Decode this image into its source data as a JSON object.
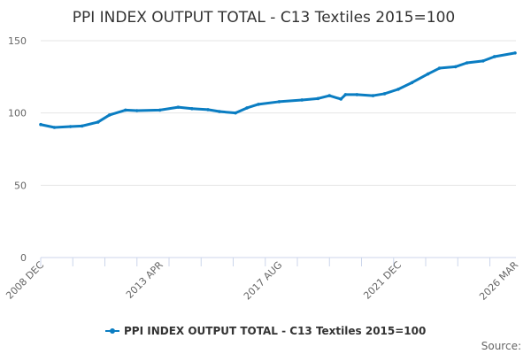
{
  "chart_data": {
    "type": "line",
    "title": "PPI INDEX OUTPUT TOTAL - C13 Textiles 2015=100",
    "xlabel": "",
    "ylabel": "",
    "ylim": [
      0,
      150
    ],
    "yticks": [
      0,
      50,
      100,
      150
    ],
    "xticks": [
      "2008 DEC",
      "2013 APR",
      "2017 AUG",
      "2021 DEC",
      "2026 MAR"
    ],
    "grid": "horizontal",
    "legend": "bottom",
    "color": "#0a7dc2",
    "series": [
      {
        "name": "PPI INDEX OUTPUT TOTAL - C13 Textiles 2015=100",
        "x": [
          "2008-12",
          "2009-06",
          "2010-01",
          "2010-06",
          "2011-01",
          "2011-06",
          "2012-01",
          "2012-06",
          "2013-04",
          "2013-12",
          "2014-06",
          "2015-01",
          "2015-06",
          "2016-01",
          "2016-06",
          "2016-11",
          "2017-08",
          "2018-06",
          "2019-01",
          "2019-06",
          "2019-11",
          "2020-01",
          "2020-06",
          "2021-01",
          "2021-06",
          "2021-12",
          "2022-06",
          "2023-01",
          "2023-06",
          "2024-01",
          "2024-06",
          "2025-01",
          "2025-06",
          "2026-03"
        ],
        "values": [
          92,
          90,
          90.6,
          91,
          93.7,
          98.6,
          102,
          101.6,
          102,
          104,
          103,
          102.3,
          101,
          100,
          103.5,
          106,
          107.8,
          109,
          110,
          112,
          109.6,
          112.7,
          112.7,
          112,
          113.3,
          116.4,
          121,
          127,
          131,
          132,
          134.7,
          136,
          139,
          141.5
        ]
      }
    ]
  },
  "source_label": "Source:"
}
